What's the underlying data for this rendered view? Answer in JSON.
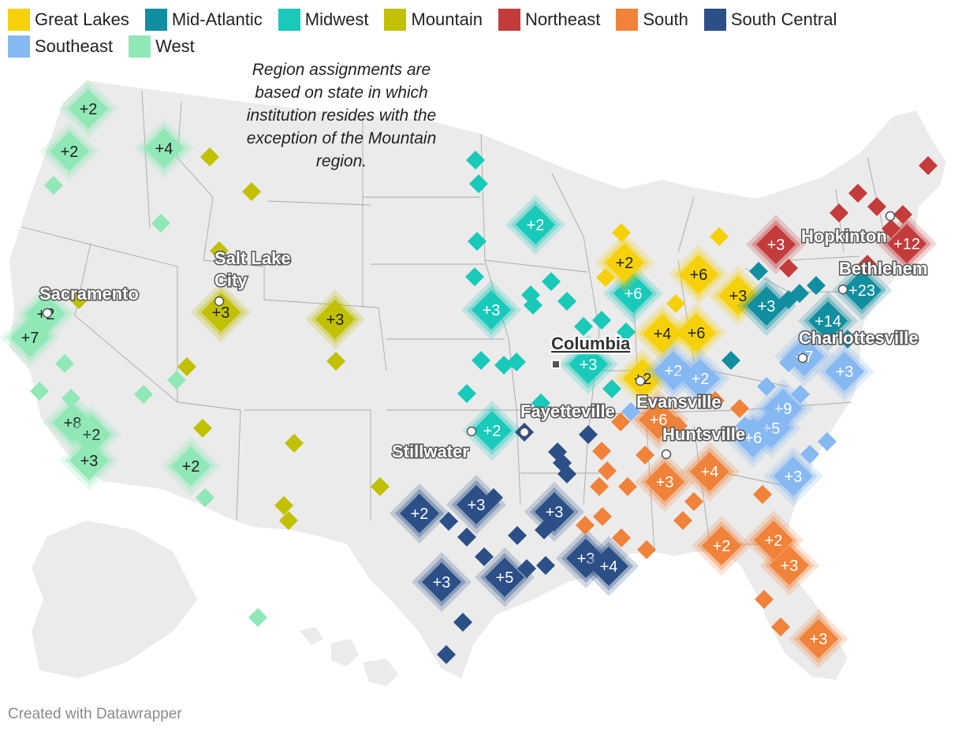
{
  "legend": [
    {
      "name": "Great Lakes",
      "color": "#f6d10a"
    },
    {
      "name": "Mid-Atlantic",
      "color": "#118ea0"
    },
    {
      "name": "Midwest",
      "color": "#19c9b9"
    },
    {
      "name": "Mountain",
      "color": "#c1c001"
    },
    {
      "name": "Northeast",
      "color": "#c43b3b"
    },
    {
      "name": "South",
      "color": "#f0823a"
    },
    {
      "name": "South Central",
      "color": "#2b4f86"
    },
    {
      "name": "Southeast",
      "color": "#86b8f2"
    },
    {
      "name": "West",
      "color": "#8fe8b6"
    }
  ],
  "note": "Region assignments are based on state in which institution resides with the exception of the Mountain region.",
  "credit": "Created with Datawrapper",
  "map": {
    "land_color": "#ebebeb",
    "border_color": "#8c8c8c",
    "cities": [
      {
        "name": "Salt Lake City",
        "marker": "circle"
      },
      {
        "name": "Sacramento",
        "marker": "circle"
      },
      {
        "name": "Columbia",
        "marker": "square",
        "underline": true
      },
      {
        "name": "Fayetteville",
        "marker": "circle"
      },
      {
        "name": "Stillwater",
        "marker": "circle"
      },
      {
        "name": "Evansville",
        "marker": "circle"
      },
      {
        "name": "Huntsville",
        "marker": "circle"
      },
      {
        "name": "Hopkinton",
        "marker": "circle"
      },
      {
        "name": "Bethlehem",
        "marker": "circle"
      },
      {
        "name": "Charlottesville",
        "marker": "circle"
      }
    ],
    "clusters": [
      {
        "region": "West",
        "count": "+2"
      },
      {
        "region": "West",
        "count": "+2"
      },
      {
        "region": "West",
        "count": "+4"
      },
      {
        "region": "West",
        "count": "+2"
      },
      {
        "region": "West",
        "count": "+7"
      },
      {
        "region": "West",
        "count": "+8"
      },
      {
        "region": "West",
        "count": "+2"
      },
      {
        "region": "West",
        "count": "+3"
      },
      {
        "region": "West",
        "count": "+2"
      },
      {
        "region": "Mountain",
        "count": "+3"
      },
      {
        "region": "Mountain",
        "count": "+3"
      },
      {
        "region": "Midwest",
        "count": "+2"
      },
      {
        "region": "Midwest",
        "count": "+3"
      },
      {
        "region": "Midwest",
        "count": "+6"
      },
      {
        "region": "Midwest",
        "count": "+3"
      },
      {
        "region": "Midwest",
        "count": "+2"
      },
      {
        "region": "Great Lakes",
        "count": "+2"
      },
      {
        "region": "Great Lakes",
        "count": "+6"
      },
      {
        "region": "Great Lakes",
        "count": "+3"
      },
      {
        "region": "Great Lakes",
        "count": "+4"
      },
      {
        "region": "Great Lakes",
        "count": "+6"
      },
      {
        "region": "Great Lakes",
        "count": "+2"
      },
      {
        "region": "Mid-Atlantic",
        "count": "+3"
      },
      {
        "region": "Mid-Atlantic",
        "count": "+14"
      },
      {
        "region": "Mid-Atlantic",
        "count": "+23"
      },
      {
        "region": "Northeast",
        "count": "+3"
      },
      {
        "region": "Northeast",
        "count": "+12"
      },
      {
        "region": "Southeast",
        "count": "+2"
      },
      {
        "region": "Southeast",
        "count": "+2"
      },
      {
        "region": "Southeast",
        "count": "+7"
      },
      {
        "region": "Southeast",
        "count": "+3"
      },
      {
        "region": "Southeast",
        "count": "+9"
      },
      {
        "region": "Southeast",
        "count": "+5"
      },
      {
        "region": "Southeast",
        "count": "+6"
      },
      {
        "region": "Southeast",
        "count": "+3"
      },
      {
        "region": "South",
        "count": "+6"
      },
      {
        "region": "South",
        "count": "+3"
      },
      {
        "region": "South",
        "count": "+4"
      },
      {
        "region": "South",
        "count": "+2"
      },
      {
        "region": "South",
        "count": "+2"
      },
      {
        "region": "South",
        "count": "+3"
      },
      {
        "region": "South",
        "count": "+3"
      },
      {
        "region": "South Central",
        "count": "+2"
      },
      {
        "region": "South Central",
        "count": "+3"
      },
      {
        "region": "South Central",
        "count": "+3"
      },
      {
        "region": "South Central",
        "count": "+3"
      },
      {
        "region": "South Central",
        "count": "+5"
      },
      {
        "region": "South Central",
        "count": "+3"
      },
      {
        "region": "South Central",
        "count": "+4"
      }
    ]
  }
}
